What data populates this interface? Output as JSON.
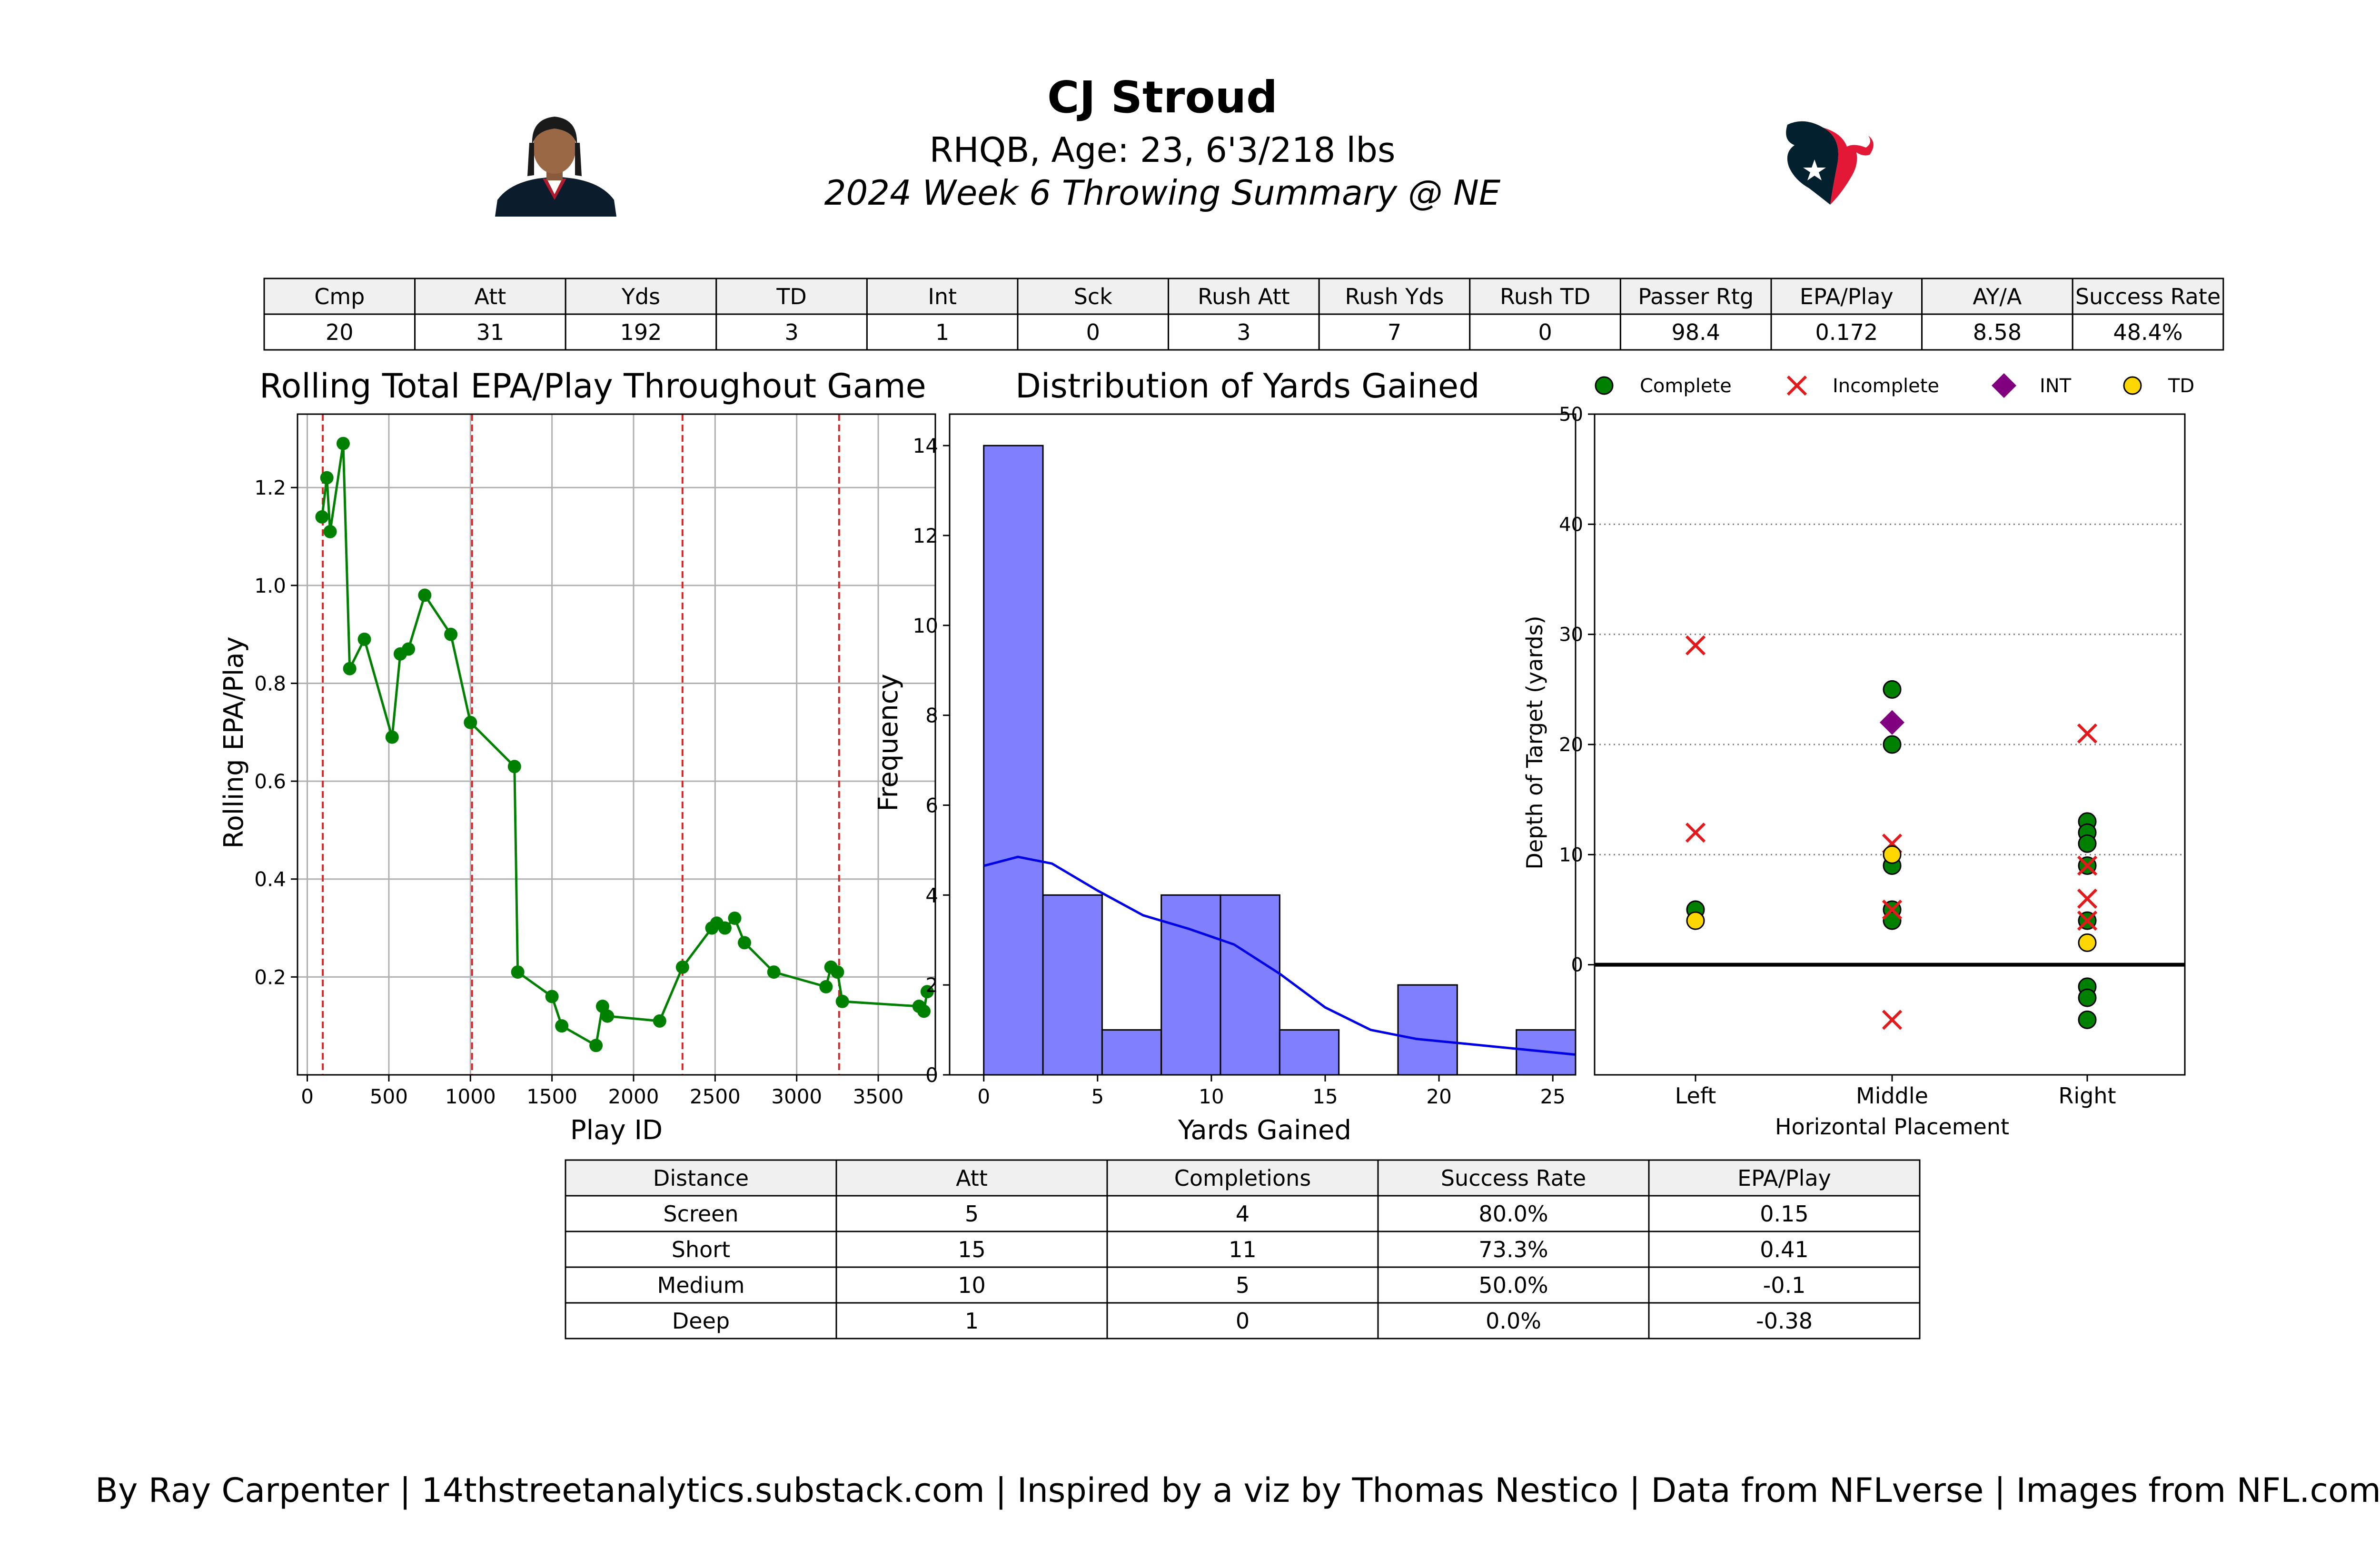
{
  "header": {
    "player_name": "CJ Stroud",
    "player_info": "RHQB, Age: 23, 6'3/218 lbs",
    "game_subtitle": "2024 Week 6 Throwing Summary @ NE",
    "team_logo_icon": "houston-texans-logo",
    "headshot_icon": "player-headshot",
    "team_colors": {
      "navy": "#03202f",
      "red": "#e31837",
      "white": "#ffffff"
    }
  },
  "stats_table": {
    "headers": [
      "Cmp",
      "Att",
      "Yds",
      "TD",
      "Int",
      "Sck",
      "Rush Att",
      "Rush Yds",
      "Rush TD",
      "Passer Rtg",
      "EPA/Play",
      "AY/A",
      "Success Rate"
    ],
    "values": [
      "20",
      "31",
      "192",
      "3",
      "1",
      "0",
      "3",
      "7",
      "0",
      "98.4",
      "0.172",
      "8.58",
      "48.4%"
    ]
  },
  "distance_table": {
    "headers": [
      "Distance",
      "Att",
      "Completions",
      "Success Rate",
      "EPA/Play"
    ],
    "rows": [
      [
        "Screen",
        "5",
        "4",
        "80.0%",
        "0.15"
      ],
      [
        "Short",
        "15",
        "11",
        "73.3%",
        "0.41"
      ],
      [
        "Medium",
        "10",
        "5",
        "50.0%",
        "-0.1"
      ],
      [
        "Deep",
        "1",
        "0",
        "0.0%",
        "-0.38"
      ]
    ]
  },
  "footer": "By Ray Carpenter | 14thstreetanalytics.substack.com | Inspired by a viz by Thomas Nestico | Data from NFLverse | Images from NFL.com",
  "colors": {
    "line": "#008000",
    "quarter_line": "#d62728",
    "hist_fill": "#8080ff",
    "kde": "#0000e6",
    "complete": "#008000",
    "incomplete": "#e31a1c",
    "int": "#800080",
    "td": "#ffd700",
    "header_fill": "#f0f0f0"
  },
  "chart_data": [
    {
      "type": "line",
      "title": "Rolling Total EPA/Play Throughout Game",
      "xlabel": "Play ID",
      "ylabel": "Rolling EPA/Play",
      "xlim": [
        -60,
        3850
      ],
      "ylim": [
        0.0,
        1.35
      ],
      "xticks": [
        0,
        500,
        1000,
        1500,
        2000,
        2500,
        3000,
        3500
      ],
      "yticks": [
        0.2,
        0.4,
        0.6,
        0.8,
        1.0,
        1.2
      ],
      "grid": true,
      "quarter_lines_x": [
        95,
        1010,
        2300,
        3260
      ],
      "x": [
        90,
        120,
        140,
        220,
        260,
        350,
        520,
        570,
        620,
        720,
        880,
        1000,
        1270,
        1290,
        1500,
        1560,
        1770,
        1810,
        1840,
        2160,
        2300,
        2480,
        2510,
        2560,
        2620,
        2680,
        2860,
        3180,
        3210,
        3250,
        3280,
        3750,
        3780,
        3800
      ],
      "y": [
        1.14,
        1.22,
        1.11,
        1.29,
        0.83,
        0.89,
        0.69,
        0.86,
        0.87,
        0.98,
        0.9,
        0.72,
        0.63,
        0.21,
        0.16,
        0.1,
        0.06,
        0.14,
        0.12,
        0.11,
        0.22,
        0.3,
        0.31,
        0.3,
        0.32,
        0.27,
        0.21,
        0.18,
        0.22,
        0.21,
        0.15,
        0.14,
        0.13,
        0.17
      ]
    },
    {
      "type": "bar",
      "title": "Distribution of Yards Gained",
      "xlabel": "Yards Gained",
      "ylabel": "Frequency",
      "xlim": [
        -1.5,
        26
      ],
      "ylim": [
        0,
        14.7
      ],
      "xticks": [
        0,
        5,
        10,
        15,
        20,
        25
      ],
      "yticks": [
        0,
        2,
        4,
        6,
        8,
        10,
        12,
        14
      ],
      "bin_edges": [
        0,
        2.6,
        5.2,
        7.8,
        10.4,
        13.0,
        15.6,
        18.2,
        20.8,
        23.4,
        26.0
      ],
      "values": [
        14,
        4,
        1,
        4,
        4,
        1,
        0,
        2,
        0,
        1
      ],
      "kde_x": [
        0,
        1.5,
        3,
        5,
        7,
        9,
        11,
        13,
        15,
        17,
        19,
        21,
        23,
        26
      ],
      "kde_y": [
        4.65,
        4.85,
        4.7,
        4.1,
        3.55,
        3.25,
        2.9,
        2.25,
        1.5,
        1.0,
        0.8,
        0.7,
        0.6,
        0.45
      ]
    },
    {
      "type": "scatter",
      "xlabel": "Horizontal Placement",
      "ylabel": "Depth of Target (yards)",
      "categories": [
        "Left",
        "Middle",
        "Right"
      ],
      "ylim": [
        -10,
        50
      ],
      "yticks": [
        0,
        10,
        20,
        30,
        40,
        50
      ],
      "grid": "horizontal-dotted",
      "legend": {
        "position": "top",
        "entries": [
          "Complete",
          "Incomplete",
          "INT",
          "TD"
        ]
      },
      "series": [
        {
          "name": "Complete",
          "marker": "circle",
          "points": [
            [
              "Left",
              5
            ],
            [
              "Middle",
              25
            ],
            [
              "Middle",
              20
            ],
            [
              "Middle",
              9
            ],
            [
              "Middle",
              5
            ],
            [
              "Middle",
              4
            ],
            [
              "Right",
              13
            ],
            [
              "Right",
              12
            ],
            [
              "Right",
              11
            ],
            [
              "Right",
              9
            ],
            [
              "Right",
              4
            ],
            [
              "Right",
              -2
            ],
            [
              "Right",
              -3
            ],
            [
              "Right",
              -5
            ]
          ]
        },
        {
          "name": "Incomplete",
          "marker": "x",
          "points": [
            [
              "Left",
              29
            ],
            [
              "Left",
              12
            ],
            [
              "Middle",
              11
            ],
            [
              "Middle",
              5
            ],
            [
              "Middle",
              -5
            ],
            [
              "Right",
              21
            ],
            [
              "Right",
              9
            ],
            [
              "Right",
              6
            ],
            [
              "Right",
              4
            ]
          ]
        },
        {
          "name": "INT",
          "marker": "diamond",
          "points": [
            [
              "Middle",
              22
            ]
          ]
        },
        {
          "name": "TD",
          "marker": "circle",
          "points": [
            [
              "Left",
              4
            ],
            [
              "Middle",
              10
            ],
            [
              "Right",
              2
            ]
          ]
        }
      ]
    }
  ]
}
